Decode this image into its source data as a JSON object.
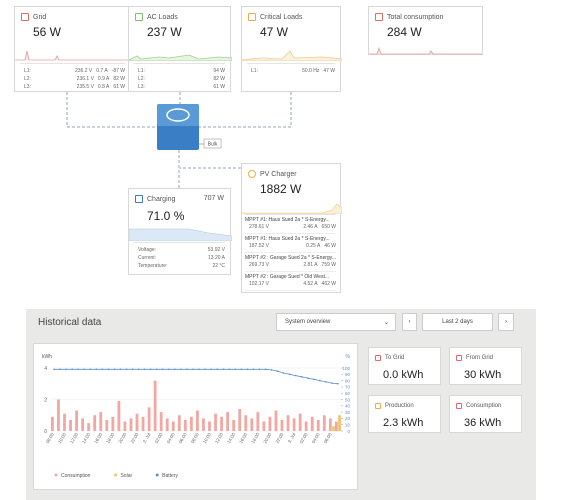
{
  "grid": {
    "title": "Grid",
    "power": "56 W",
    "rows": [
      [
        "L1:",
        "236.2 V",
        "0.7 A",
        "-87 W"
      ],
      [
        "L2:",
        "236.1 V",
        "0.9 A",
        "82 W"
      ],
      [
        "L3:",
        "235.5 V",
        "0.8 A",
        "61 W"
      ]
    ]
  },
  "ac_loads": {
    "title": "AC Loads",
    "power": "237 W",
    "rows": [
      [
        "L1:",
        "94 W"
      ],
      [
        "L2:",
        "82 W"
      ],
      [
        "L3:",
        "61 W"
      ]
    ]
  },
  "critical_loads": {
    "title": "Critical Loads",
    "power": "47 W",
    "rows": [
      [
        "L1:",
        "50.0 Hz",
        "47 W"
      ]
    ]
  },
  "total_consumption": {
    "title": "Total consumption",
    "power": "284 W"
  },
  "inverter": {
    "state": "Bulk"
  },
  "charging": {
    "title": "Charging",
    "power": "707 W",
    "soc": "71.0 %",
    "rows": [
      [
        "Voltage:",
        "53.92 V"
      ],
      [
        "Current:",
        "13.20 A"
      ],
      [
        "Temperature:",
        "22 °C"
      ]
    ]
  },
  "pv_charger": {
    "title": "PV Charger",
    "power": "1882 W",
    "trackers": [
      {
        "name": "MPPT #1: Haus Sued 2a * S-Energy...",
        "values": [
          "278.61 V",
          "2.46 A",
          "650 W"
        ]
      },
      {
        "name": "MPPT #1: Haus Sued 2a * S-Energy...",
        "values": [
          "187.52 V",
          "0.25 A",
          "46 W"
        ]
      },
      {
        "name": "MPPT #2 : Garage Sued 2a * S-Energy...",
        "values": [
          "269.73 V",
          "2.81 A",
          "759 W"
        ]
      },
      {
        "name": "MPPT #2 : Garage Sued * Old West...",
        "values": [
          "102.17 V",
          "4.52 A",
          "462 W"
        ]
      }
    ]
  },
  "historical": {
    "title": "Historical data",
    "view": "System overview",
    "range": "Last 2 days",
    "stats": [
      {
        "label": "To Grid",
        "value": "0.0 kWh"
      },
      {
        "label": "From Grid",
        "value": "30 kWh"
      },
      {
        "label": "Production",
        "value": "2.3 kWh"
      },
      {
        "label": "Consumption",
        "value": "36 kWh"
      }
    ]
  },
  "chart_data": {
    "type": "bar",
    "y_label": "kWh",
    "y2_label": "%",
    "categories": [
      "08:00",
      null,
      "10:00",
      null,
      "12:00",
      null,
      "14:00",
      null,
      "16:00",
      null,
      "18:00",
      null,
      "20:00",
      null,
      "22:00",
      null,
      "2. Jul",
      null,
      "02:00",
      null,
      "04:00",
      null,
      "06:00",
      null,
      "08:00",
      null,
      "10:00",
      null,
      "12:00",
      null,
      "14:00",
      null,
      "16:00",
      null,
      "18:00",
      null,
      "20:00",
      null,
      "22:00",
      null,
      "3. Jul",
      null,
      "02:00",
      null,
      "04:00",
      null,
      "06:00",
      null
    ],
    "series": [
      {
        "name": "Consumption",
        "color": "#f2a7a3",
        "values": [
          0.9,
          2.0,
          1.1,
          0.7,
          1.3,
          0.8,
          0.5,
          1.0,
          1.2,
          0.7,
          0.9,
          1.9,
          0.6,
          0.8,
          1.1,
          0.9,
          1.5,
          3.2,
          1.2,
          0.8,
          0.6,
          1.0,
          0.7,
          0.9,
          1.3,
          0.8,
          0.6,
          1.1,
          0.9,
          1.2,
          0.7,
          1.4,
          1.0,
          0.8,
          1.2,
          0.6,
          0.9,
          1.3,
          0.7,
          1.0,
          0.8,
          1.1,
          0.6,
          0.9,
          0.7,
          1.0,
          0.8,
          0.6
        ]
      },
      {
        "name": "Solar",
        "color": "#f3c36e",
        "values": [
          0,
          0,
          0,
          0,
          0,
          0,
          0,
          0,
          0,
          0,
          0,
          0,
          0,
          0,
          0,
          0,
          0,
          0,
          0,
          0,
          0,
          0,
          0,
          0,
          0,
          0,
          0,
          0,
          0,
          0,
          0,
          0,
          0,
          0,
          0,
          0,
          0,
          0,
          0,
          0,
          0,
          0,
          0,
          0,
          0,
          0,
          0.3,
          1.0
        ]
      },
      {
        "name": "Battery",
        "color": "#5b8fd1",
        "axis": "y2",
        "values": [
          98,
          98,
          98,
          98,
          98,
          98,
          98,
          98,
          98,
          98,
          98,
          98,
          98,
          98,
          98,
          98,
          98,
          98,
          98,
          98,
          98,
          98,
          98,
          98,
          98,
          98,
          98,
          98,
          98,
          98,
          98,
          98,
          98,
          98,
          98,
          98,
          97,
          95,
          92,
          90,
          88,
          86,
          84,
          82,
          80,
          78,
          76,
          75
        ]
      }
    ],
    "ylim": [
      0,
      4
    ],
    "yticks": [
      0,
      2,
      4
    ],
    "y2lim": [
      0,
      100
    ],
    "y2ticks": [
      0,
      10,
      20,
      30,
      40,
      50,
      60,
      70,
      80,
      90,
      100
    ]
  }
}
